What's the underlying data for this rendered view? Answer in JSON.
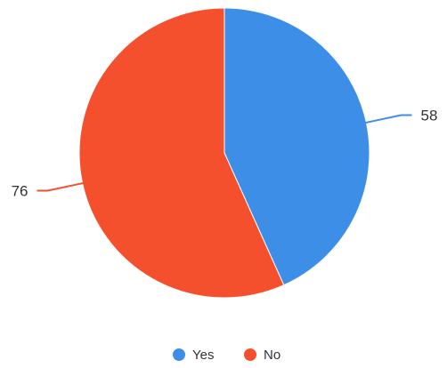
{
  "chart_data": {
    "type": "pie",
    "categories": [
      "Yes",
      "No"
    ],
    "values": [
      58,
      76
    ],
    "colors": [
      "#3d8ee6",
      "#f4502d"
    ],
    "legend_position": "bottom-center",
    "data_labels": [
      "58",
      "76"
    ],
    "start": "12 o'clock",
    "direction": "clockwise"
  }
}
